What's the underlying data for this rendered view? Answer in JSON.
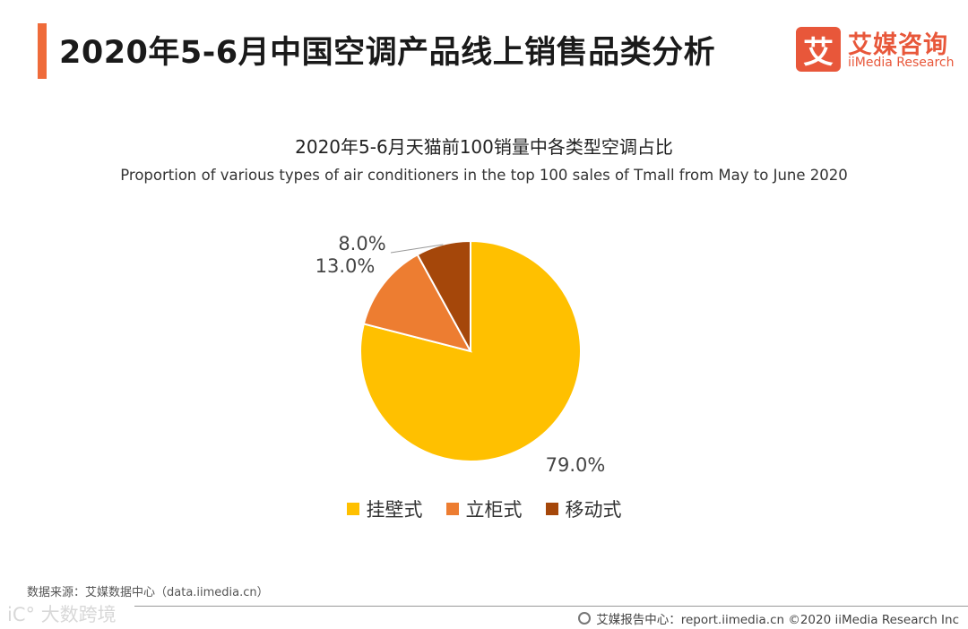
{
  "header": {
    "title": "2020年5-6月中国空调产品线上销售品类分析"
  },
  "brand": {
    "logo_char": "艾",
    "name_cn": "艾媒咨询",
    "name_en": "iiMedia Research"
  },
  "chart_data": {
    "type": "pie",
    "title": "2020年5-6月天猫前100销量中各类型空调占比",
    "subtitle": "Proportion of various types of air conditioners in the top 100 sales of Tmall from May to June 2020",
    "categories": [
      "挂壁式",
      "立柜式",
      "移动式"
    ],
    "values": [
      79.0,
      13.0,
      8.0
    ],
    "labels": [
      "79.0%",
      "13.0%",
      "8.0%"
    ],
    "colors": [
      "#ffc000",
      "#ed7d31",
      "#a5470a"
    ],
    "legend_position": "bottom"
  },
  "source": "数据来源：艾媒数据中心（data.iimedia.cn）",
  "watermark": "iC° 大数跨境",
  "footer": {
    "text": "艾媒报告中心：report.iimedia.cn  ©2020  iiMedia Research  Inc"
  }
}
